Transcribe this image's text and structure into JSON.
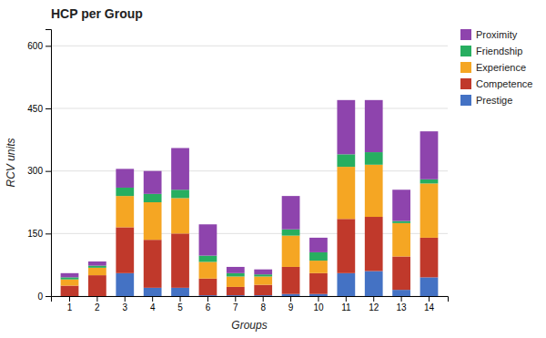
{
  "chart_data": {
    "type": "bar",
    "stacked": true,
    "title": "HCP per Group",
    "xlabel": "Groups",
    "ylabel": "RCV units",
    "categories": [
      1,
      2,
      3,
      4,
      5,
      6,
      7,
      8,
      9,
      10,
      11,
      12,
      13,
      14
    ],
    "series": [
      {
        "name": "Prestige",
        "color": "#4472C4",
        "values": [
          0,
          0,
          55,
          20,
          20,
          2,
          2,
          2,
          5,
          5,
          55,
          60,
          15,
          45
        ]
      },
      {
        "name": "Competence",
        "color": "#C0392B",
        "values": [
          25,
          50,
          110,
          115,
          130,
          40,
          20,
          25,
          65,
          50,
          130,
          130,
          80,
          95
        ]
      },
      {
        "name": "Experience",
        "color": "#F5A623",
        "values": [
          15,
          18,
          75,
          90,
          85,
          40,
          25,
          20,
          75,
          30,
          125,
          125,
          80,
          130
        ]
      },
      {
        "name": "Friendship",
        "color": "#27AE60",
        "values": [
          5,
          5,
          20,
          20,
          20,
          15,
          8,
          5,
          15,
          20,
          30,
          30,
          5,
          10
        ]
      },
      {
        "name": "Proximity",
        "color": "#8E44AD",
        "values": [
          10,
          10,
          45,
          55,
          100,
          75,
          15,
          12,
          80,
          35,
          130,
          125,
          75,
          115
        ]
      }
    ],
    "ylim": [
      0,
      640
    ],
    "yticks": [
      0,
      150,
      300,
      450,
      600
    ],
    "grid": true,
    "legend": "upper right"
  }
}
